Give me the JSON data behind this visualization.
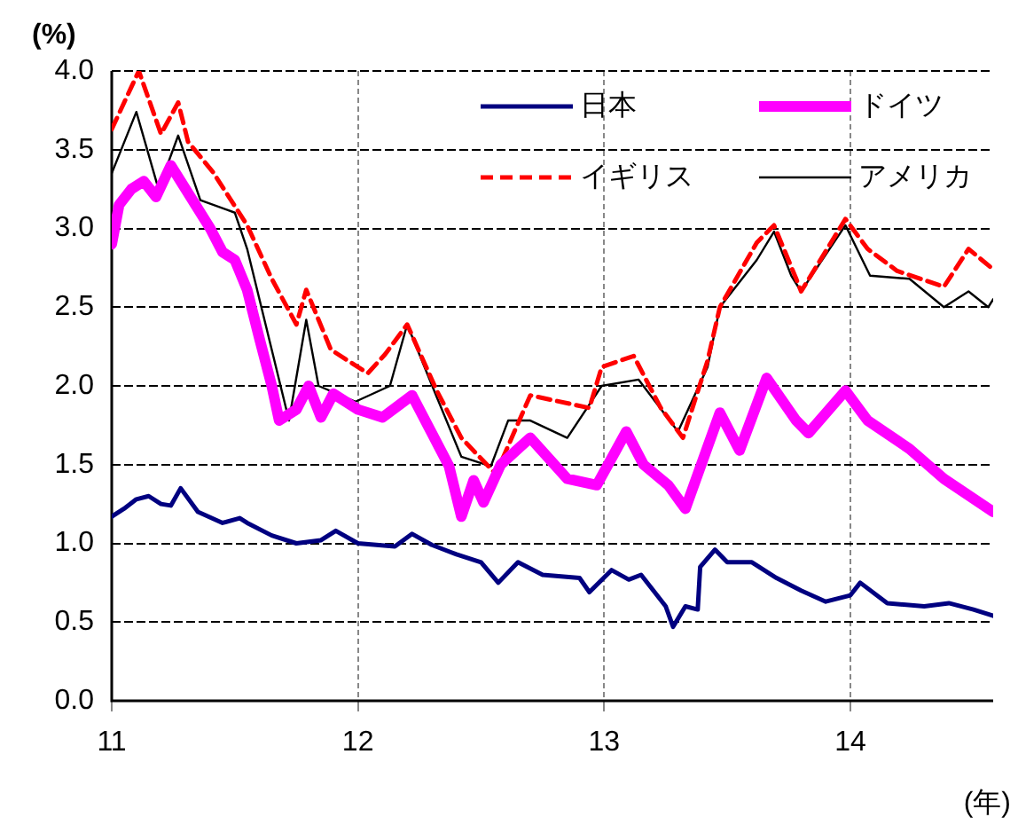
{
  "chart_data": {
    "type": "line",
    "xlabel": "(年)",
    "ylabel": "(%)",
    "xlim": [
      11,
      14.58
    ],
    "xticks": [
      11,
      12,
      13,
      14
    ],
    "ylim": [
      0,
      4
    ],
    "yticks": [
      {
        "value": 0,
        "label": "0.0"
      },
      {
        "value": 0.5,
        "label": "0.5"
      },
      {
        "value": 1,
        "label": "1.0"
      },
      {
        "value": 1.5,
        "label": "1.5"
      },
      {
        "value": 2,
        "label": "2.0"
      },
      {
        "value": 2.5,
        "label": "2.5"
      },
      {
        "value": 3,
        "label": "3.0"
      },
      {
        "value": 3.5,
        "label": "3.5"
      },
      {
        "value": 4,
        "label": "4.0"
      }
    ],
    "grid": true,
    "legend": "top right",
    "marker": "none",
    "series": [
      {
        "name": "日本",
        "color": "#000080",
        "line_style": "solid",
        "x": [
          11,
          11.05,
          11.1,
          11.15,
          11.2,
          11.24,
          11.28,
          11.35,
          11.45,
          11.52,
          11.55,
          11.65,
          11.75,
          11.85,
          11.91,
          12,
          12.15,
          12.22,
          12.3,
          12.4,
          12.5,
          12.57,
          12.65,
          12.75,
          12.9,
          12.94,
          13.03,
          13.1,
          13.15,
          13.25,
          13.28,
          13.33,
          13.38,
          13.39,
          13.45,
          13.5,
          13.6,
          13.7,
          13.8,
          13.9,
          14,
          14.04,
          14.15,
          14.3,
          14.4,
          14.5,
          14.58
        ],
        "values": [
          1.17,
          1.22,
          1.28,
          1.3,
          1.25,
          1.24,
          1.35,
          1.2,
          1.13,
          1.16,
          1.13,
          1.05,
          1,
          1.02,
          1.08,
          1,
          0.98,
          1.06,
          0.99,
          0.93,
          0.88,
          0.75,
          0.88,
          0.8,
          0.78,
          0.69,
          0.83,
          0.77,
          0.8,
          0.6,
          0.47,
          0.6,
          0.58,
          0.85,
          0.96,
          0.88,
          0.88,
          0.78,
          0.7,
          0.63,
          0.67,
          0.75,
          0.62,
          0.6,
          0.62,
          0.58,
          0.54
        ]
      },
      {
        "name": "ドイツ",
        "color": "#ff00ff",
        "line_style": "solid",
        "x": [
          11,
          11.03,
          11.08,
          11.13,
          11.18,
          11.24,
          11.32,
          11.4,
          11.45,
          11.5,
          11.55,
          11.6,
          11.65,
          11.68,
          11.75,
          11.8,
          11.85,
          11.9,
          12,
          12.1,
          12.22,
          12.3,
          12.37,
          12.42,
          12.47,
          12.51,
          12.58,
          12.65,
          12.7,
          12.85,
          12.97,
          13.09,
          13.16,
          13.26,
          13.33,
          13.47,
          13.55,
          13.66,
          13.78,
          13.83,
          13.98,
          14.07,
          14.24,
          14.38,
          14.58
        ],
        "values": [
          2.9,
          3.15,
          3.25,
          3.3,
          3.2,
          3.4,
          3.2,
          3,
          2.85,
          2.8,
          2.61,
          2.3,
          2,
          1.78,
          1.85,
          2,
          1.8,
          1.95,
          1.85,
          1.8,
          1.94,
          1.7,
          1.49,
          1.17,
          1.4,
          1.26,
          1.5,
          1.6,
          1.67,
          1.41,
          1.37,
          1.71,
          1.5,
          1.37,
          1.22,
          1.83,
          1.59,
          2.05,
          1.78,
          1.7,
          1.97,
          1.78,
          1.6,
          1.41,
          1.2
        ]
      },
      {
        "name": "イギリス",
        "color": "#ff0000",
        "line_style": "dashed",
        "x": [
          11,
          11.11,
          11.2,
          11.27,
          11.31,
          11.41,
          11.55,
          11.65,
          11.75,
          11.79,
          11.89,
          12.04,
          12.11,
          12.2,
          12.32,
          12.42,
          12.56,
          12.7,
          12.94,
          12.99,
          13.12,
          13.23,
          13.32,
          13.42,
          13.47,
          13.62,
          13.69,
          13.78,
          13.8,
          13.98,
          14.07,
          14.19,
          14.38,
          14.48,
          14.58
        ],
        "values": [
          3.63,
          4,
          3.6,
          3.8,
          3.55,
          3.36,
          3.02,
          2.68,
          2.39,
          2.61,
          2.23,
          2.08,
          2.2,
          2.39,
          1.97,
          1.67,
          1.44,
          1.94,
          1.86,
          2.12,
          2.19,
          1.86,
          1.67,
          2.16,
          2.5,
          2.91,
          3.02,
          2.68,
          2.6,
          3.06,
          2.87,
          2.73,
          2.63,
          2.87,
          2.74
        ]
      },
      {
        "name": "アメリカ",
        "color": "#000000",
        "line_style": "solid",
        "x": [
          11,
          11.1,
          11.19,
          11.27,
          11.36,
          11.5,
          11.55,
          11.72,
          11.79,
          11.84,
          11.99,
          12.13,
          12.2,
          12.32,
          12.42,
          12.54,
          12.61,
          12.7,
          12.85,
          12.99,
          13.14,
          13.3,
          13.42,
          13.47,
          13.62,
          13.69,
          13.76,
          13.8,
          13.98,
          14.08,
          14.24,
          14.38,
          14.48,
          14.56,
          14.58
        ],
        "values": [
          3.35,
          3.74,
          3.25,
          3.59,
          3.18,
          3.1,
          2.87,
          1.78,
          2.42,
          2,
          1.9,
          2,
          2.39,
          1.93,
          1.55,
          1.49,
          1.78,
          1.78,
          1.67,
          2,
          2.04,
          1.71,
          2.12,
          2.5,
          2.8,
          2.98,
          2.7,
          2.6,
          3.02,
          2.7,
          2.68,
          2.5,
          2.6,
          2.5,
          2.55
        ]
      }
    ]
  }
}
